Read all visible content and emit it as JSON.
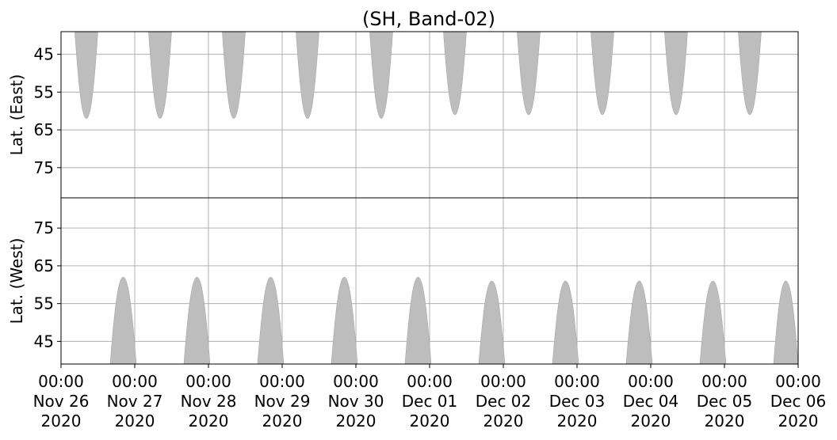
{
  "chart_data": [
    {
      "type": "area",
      "panel": "east",
      "title": "(SH, Band-02)",
      "ylabel": "Lat. (East)",
      "ylim": [
        39,
        83
      ],
      "y_inverted": true,
      "y_ticks": [
        "45",
        "55",
        "65",
        "75"
      ],
      "y_tick_values": [
        45,
        55,
        65,
        75
      ],
      "grid": true,
      "fill_color": "#bdbdbd",
      "series": [
        {
          "values": [
            {
              "start": "2020-11-26 04:30",
              "end": "2020-11-26 12:00",
              "lat_extreme": 62
            }
          ]
        },
        {
          "values": [
            {
              "start": "2020-11-27 04:30",
              "end": "2020-11-27 12:00",
              "lat_extreme": 62
            }
          ]
        },
        {
          "values": [
            {
              "start": "2020-11-28 04:30",
              "end": "2020-11-28 12:00",
              "lat_extreme": 62
            }
          ]
        },
        {
          "values": [
            {
              "start": "2020-11-29 04:30",
              "end": "2020-11-29 12:00",
              "lat_extreme": 62
            }
          ]
        },
        {
          "values": [
            {
              "start": "2020-11-30 04:30",
              "end": "2020-11-30 12:00",
              "lat_extreme": 62
            }
          ]
        },
        {
          "values": [
            {
              "start": "2020-12-01 04:30",
              "end": "2020-12-01 12:00",
              "lat_extreme": 61
            }
          ]
        },
        {
          "values": [
            {
              "start": "2020-12-02 04:30",
              "end": "2020-12-02 12:00",
              "lat_extreme": 61
            }
          ]
        },
        {
          "values": [
            {
              "start": "2020-12-03 04:30",
              "end": "2020-12-03 12:00",
              "lat_extreme": 61
            }
          ]
        },
        {
          "values": [
            {
              "start": "2020-12-04 04:30",
              "end": "2020-12-04 12:00",
              "lat_extreme": 61
            }
          ]
        },
        {
          "values": [
            {
              "start": "2020-12-05 04:30",
              "end": "2020-12-05 12:00",
              "lat_extreme": 61
            }
          ]
        }
      ]
    },
    {
      "type": "area",
      "panel": "west",
      "ylabel": "Lat. (West)",
      "ylim": [
        39,
        83
      ],
      "y_ticks": [
        "75",
        "65",
        "55",
        "45"
      ],
      "y_tick_values": [
        75,
        65,
        55,
        45
      ],
      "grid": true,
      "fill_color": "#bdbdbd",
      "series": [
        {
          "values": [
            {
              "start": "2020-11-26 16:00",
              "end": "2020-11-27 00:30",
              "lat_extreme": 62
            }
          ]
        },
        {
          "values": [
            {
              "start": "2020-11-27 16:00",
              "end": "2020-11-28 00:30",
              "lat_extreme": 62
            }
          ]
        },
        {
          "values": [
            {
              "start": "2020-11-28 16:00",
              "end": "2020-11-29 00:30",
              "lat_extreme": 62
            }
          ]
        },
        {
          "values": [
            {
              "start": "2020-11-29 16:00",
              "end": "2020-11-30 00:30",
              "lat_extreme": 62
            }
          ]
        },
        {
          "values": [
            {
              "start": "2020-11-30 16:00",
              "end": "2020-12-01 00:30",
              "lat_extreme": 62
            }
          ]
        },
        {
          "values": [
            {
              "start": "2020-12-01 16:00",
              "end": "2020-12-02 00:30",
              "lat_extreme": 61
            }
          ]
        },
        {
          "values": [
            {
              "start": "2020-12-02 16:00",
              "end": "2020-12-03 00:30",
              "lat_extreme": 61
            }
          ]
        },
        {
          "values": [
            {
              "start": "2020-12-03 16:00",
              "end": "2020-12-04 00:30",
              "lat_extreme": 61
            }
          ]
        },
        {
          "values": [
            {
              "start": "2020-12-04 16:00",
              "end": "2020-12-05 00:30",
              "lat_extreme": 61
            }
          ]
        },
        {
          "values": [
            {
              "start": "2020-12-05 16:00",
              "end": "2020-12-06 00:00",
              "lat_extreme": 61
            }
          ]
        }
      ]
    }
  ],
  "x_axis": {
    "xlim": [
      "2020-11-26 00:00",
      "2020-12-06 00:00"
    ],
    "ticks": [
      {
        "time": "00:00",
        "date": "Nov 26",
        "year": "2020"
      },
      {
        "time": "00:00",
        "date": "Nov 27",
        "year": "2020"
      },
      {
        "time": "00:00",
        "date": "Nov 28",
        "year": "2020"
      },
      {
        "time": "00:00",
        "date": "Nov 29",
        "year": "2020"
      },
      {
        "time": "00:00",
        "date": "Nov 30",
        "year": "2020"
      },
      {
        "time": "00:00",
        "date": "Dec 01",
        "year": "2020"
      },
      {
        "time": "00:00",
        "date": "Dec 02",
        "year": "2020"
      },
      {
        "time": "00:00",
        "date": "Dec 03",
        "year": "2020"
      },
      {
        "time": "00:00",
        "date": "Dec 04",
        "year": "2020"
      },
      {
        "time": "00:00",
        "date": "Dec 05",
        "year": "2020"
      },
      {
        "time": "00:00",
        "date": "Dec 06",
        "year": "2020"
      }
    ]
  }
}
